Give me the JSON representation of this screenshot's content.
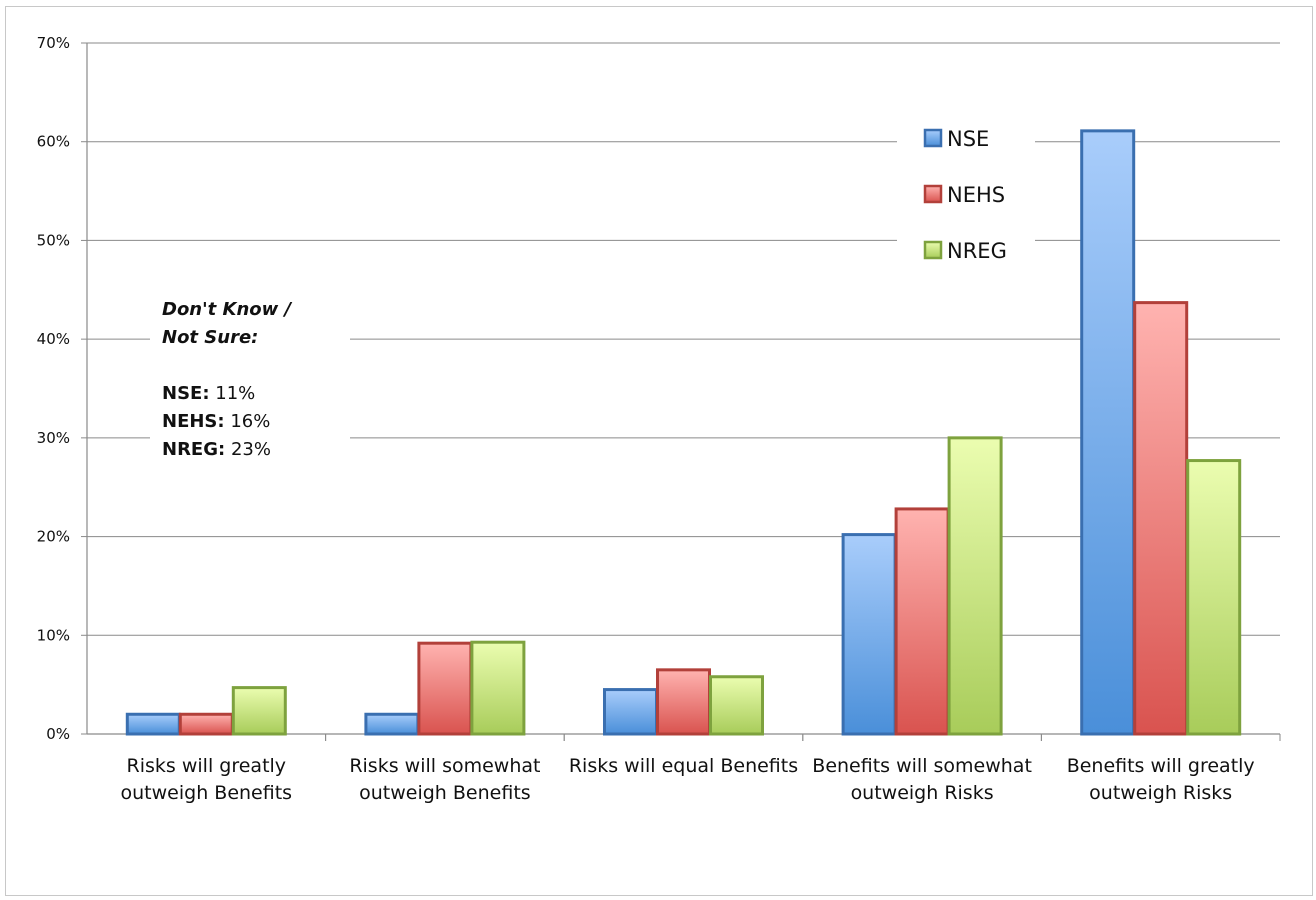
{
  "chart_data": {
    "type": "bar",
    "categories": [
      [
        "Risks will greatly",
        "outweigh Benefits"
      ],
      [
        "Risks will somewhat",
        "outweigh Benefits"
      ],
      [
        "Risks will equal Benefits"
      ],
      [
        "Benefits will somewhat",
        "outweigh Risks"
      ],
      [
        "Benefits will greatly",
        "outweigh Risks"
      ]
    ],
    "series": [
      {
        "name": "NSE",
        "values": [
          2,
          2,
          4.5,
          20.2,
          61.1
        ],
        "color_top": "#a9cdfb",
        "color_bottom": "#4a8fd9",
        "stroke": "#3a6fb0"
      },
      {
        "name": "NEHS",
        "values": [
          2,
          9.2,
          6.5,
          22.8,
          43.7
        ],
        "color_top": "#ffb3b0",
        "color_bottom": "#d9534f",
        "stroke": "#b2403a"
      },
      {
        "name": "NREG",
        "values": [
          4.7,
          9.3,
          5.8,
          30,
          27.7
        ],
        "color_top": "#ebfdb0",
        "color_bottom": "#a8cc5a",
        "stroke": "#7ea23e"
      }
    ],
    "ylim": [
      0,
      70
    ],
    "yticks": [
      "0%",
      "10%",
      "20%",
      "30%",
      "40%",
      "50%",
      "60%",
      "70%"
    ],
    "grid": true,
    "legend": "top-right",
    "xlabel": "",
    "ylabel": "",
    "title": ""
  },
  "note": {
    "title_line1": "Don't Know /",
    "title_line2": "Not Sure:",
    "rows": [
      {
        "key": "NSE:",
        "value": "11%"
      },
      {
        "key": "NEHS:",
        "value": "16%"
      },
      {
        "key": "NREG:",
        "value": "23%"
      }
    ]
  }
}
